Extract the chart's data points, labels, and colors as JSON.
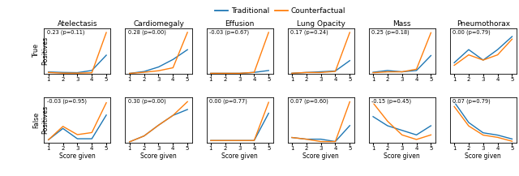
{
  "cols": [
    "Atelectasis",
    "Cardiomegaly",
    "Effusion",
    "Lung Opacity",
    "Mass",
    "Pneumothorax"
  ],
  "row_labels": [
    "True\nPositives",
    "False\nPositives"
  ],
  "xlabel": "Score given",
  "x": [
    1,
    2,
    3,
    4,
    5
  ],
  "annotations": [
    [
      "0.23 (p=0.11)",
      "0.28 (p=0.00)",
      "-0.03 (p=0.67)",
      "0.17 (p=0.24)",
      "0.25 (p=0.18)",
      "0.00 (p=0.79)"
    ],
    [
      "-0.03 (p=0.95)",
      "0.30 (p=0.00)",
      "0.00 (p=0.77)",
      "0.07 (p=0.60)",
      "-0.15 (p=0.45)",
      "0.07 (p=0.79)"
    ]
  ],
  "tp_trad": [
    [
      0.04,
      0.035,
      0.033,
      0.055,
      0.21
    ],
    [
      0.015,
      0.04,
      0.1,
      0.2,
      0.33
    ],
    [
      0.025,
      0.025,
      0.025,
      0.04,
      0.07
    ],
    [
      0.03,
      0.04,
      0.05,
      0.06,
      0.2
    ],
    [
      0.07,
      0.09,
      0.075,
      0.09,
      0.26
    ],
    [
      0.11,
      0.135,
      0.115,
      0.135,
      0.16
    ]
  ],
  "tp_cf": [
    [
      0.035,
      0.028,
      0.028,
      0.032,
      0.44
    ],
    [
      0.015,
      0.03,
      0.05,
      0.09,
      0.56
    ],
    [
      0.025,
      0.025,
      0.025,
      0.04,
      0.68
    ],
    [
      0.03,
      0.04,
      0.04,
      0.055,
      0.58
    ],
    [
      0.065,
      0.075,
      0.075,
      0.105,
      0.52
    ],
    [
      0.105,
      0.125,
      0.115,
      0.125,
      0.155
    ]
  ],
  "fp_trad": [
    [
      0.09,
      0.145,
      0.095,
      0.095,
      0.21
    ],
    [
      0.025,
      0.055,
      0.11,
      0.16,
      0.19
    ],
    [
      0.025,
      0.025,
      0.025,
      0.025,
      0.075
    ],
    [
      0.045,
      0.038,
      0.038,
      0.028,
      0.095
    ],
    [
      0.095,
      0.075,
      0.065,
      0.055,
      0.075
    ],
    [
      0.21,
      0.12,
      0.075,
      0.065,
      0.048
    ]
  ],
  "fp_cf": [
    [
      0.09,
      0.155,
      0.115,
      0.125,
      0.27
    ],
    [
      0.025,
      0.055,
      0.11,
      0.16,
      0.23
    ],
    [
      0.025,
      0.025,
      0.025,
      0.025,
      0.095
    ],
    [
      0.045,
      0.038,
      0.028,
      0.028,
      0.195
    ],
    [
      0.125,
      0.085,
      0.055,
      0.045,
      0.055
    ],
    [
      0.19,
      0.105,
      0.065,
      0.055,
      0.038
    ]
  ],
  "trad_color": "#1f77b4",
  "cf_color": "#ff7f0e",
  "legend_trad": "Traditional",
  "legend_cf": "Counterfactual",
  "figsize": [
    6.4,
    2.17
  ],
  "dpi": 100,
  "title_fontsize": 6.5,
  "annot_fontsize": 4.8,
  "tick_fontsize": 5.0,
  "xlabel_fontsize": 5.5,
  "ylabel_fontsize": 5.8,
  "legend_fontsize": 6.5,
  "lw": 1.0
}
